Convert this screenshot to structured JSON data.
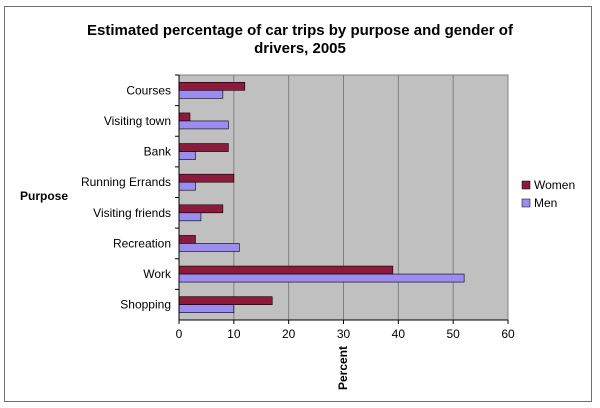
{
  "chart_data": {
    "type": "bar",
    "orientation": "horizontal",
    "title_lines": [
      "Estimated percentage of car trips by purpose and gender of",
      "drivers, 2005"
    ],
    "ylabel": "Purpose",
    "xlabel": "Percent",
    "categories": [
      "Courses",
      "Visiting town",
      "Bank",
      "Running Errands",
      "Visiting friends",
      "Recreation",
      "Work",
      "Shopping"
    ],
    "series": [
      {
        "name": "Women",
        "color": "#8b1a3c",
        "values": [
          12,
          2,
          9,
          10,
          8,
          3,
          39,
          17
        ]
      },
      {
        "name": "Men",
        "color": "#9b8cf0",
        "values": [
          8,
          9,
          3,
          3,
          4,
          11,
          52,
          10
        ]
      }
    ],
    "xlim": [
      0,
      60
    ],
    "xticks": [
      0,
      10,
      20,
      30,
      40,
      50,
      60
    ],
    "grid": true,
    "plot_background": "#c0c0c0",
    "legend_position": "right"
  }
}
